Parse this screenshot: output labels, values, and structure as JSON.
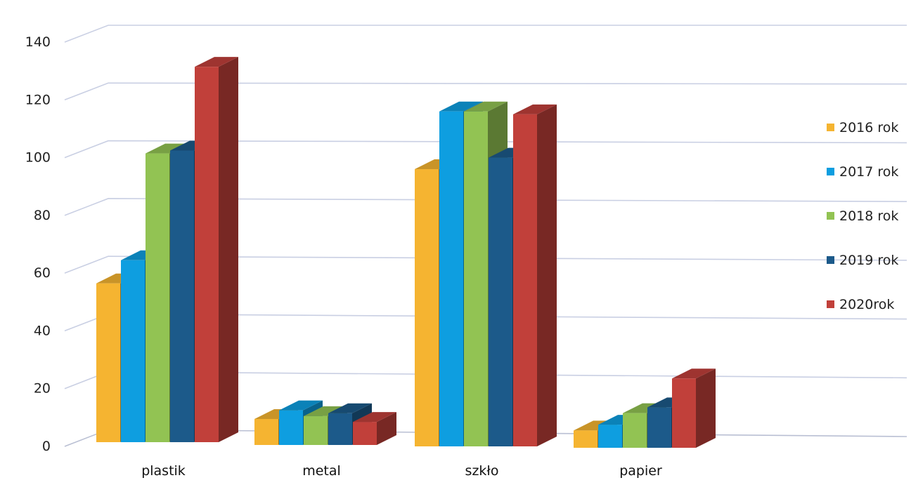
{
  "chart_data": {
    "type": "bar",
    "title": "",
    "xlabel": "",
    "ylabel": "",
    "ylim": [
      0,
      140
    ],
    "y_ticks": [
      "0",
      "20",
      "40",
      "60",
      "80",
      "100",
      "120",
      "140"
    ],
    "grid": true,
    "legend_position": "right",
    "categories": [
      "plastik",
      "metal",
      "szkło",
      "papier"
    ],
    "series": [
      {
        "name": "2016 rok",
        "color": "#f5b431",
        "values": [
          55,
          9,
          96,
          6
        ]
      },
      {
        "name": "2017 rok",
        "color": "#0e9ee0",
        "values": [
          63,
          12,
          116,
          8
        ]
      },
      {
        "name": "2018 rok",
        "color": "#92c353",
        "values": [
          100,
          10,
          116,
          12
        ]
      },
      {
        "name": "2019 rok",
        "color": "#1c5a8a",
        "values": [
          101,
          11,
          100,
          14
        ]
      },
      {
        "name": "2020rok",
        "color": "#c1403a",
        "values": [
          130,
          8,
          115,
          24
        ]
      }
    ]
  }
}
